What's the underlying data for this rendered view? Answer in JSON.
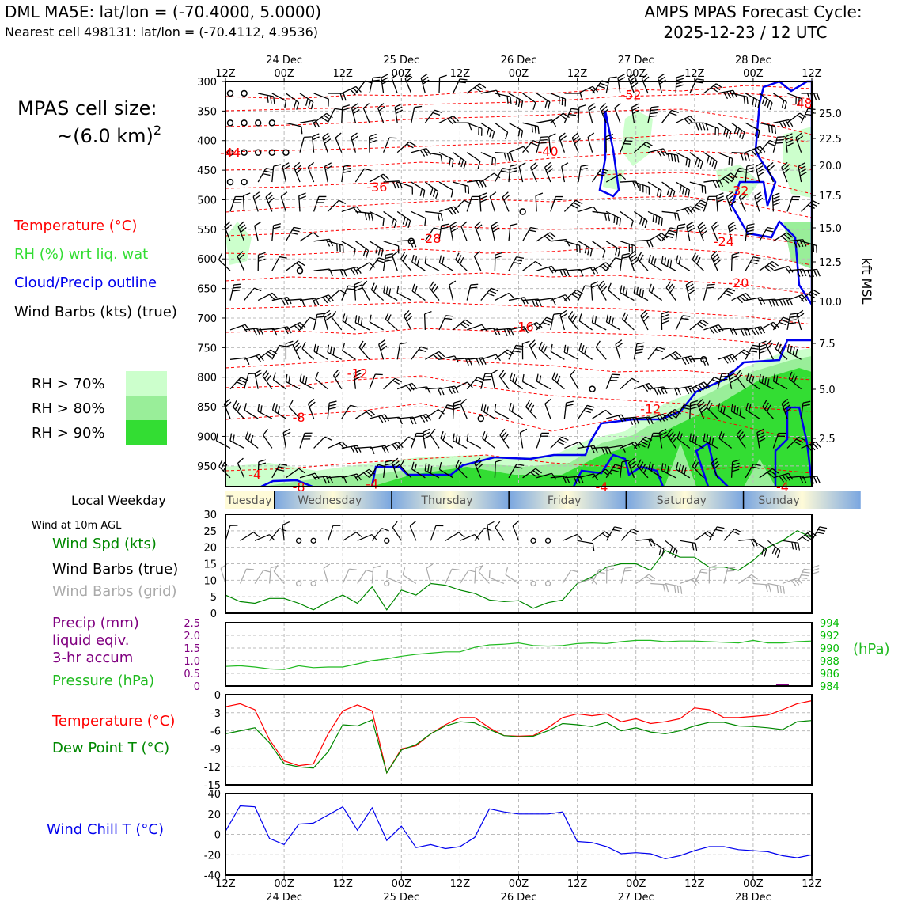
{
  "header": {
    "title_left": "DML MA5E: lat/lon = (-70.4000, 5.0000)",
    "subtitle_left": "Nearest cell 498131: lat/lon = (-70.4112, 4.9536)",
    "title_right_1": "AMPS MPAS Forecast Cycle:",
    "title_right_2": "2025-12-23 / 12 UTC"
  },
  "side": {
    "cell_size_1": "MPAS cell size:",
    "cell_size_2": "~(6.0 km)",
    "cell_size_exp": "2",
    "legend_temp": "Temperature (°C)",
    "legend_rh": "RH (%) wrt liq. wat",
    "legend_cloud": "Cloud/Precip outline",
    "legend_wind": "Wind Barbs (kts) (true)",
    "rh_levels": [
      "RH > 70%",
      "RH > 80%",
      "RH > 90%"
    ],
    "weekday_title": "Local Weekday",
    "wind_title": "Wind at 10m AGL",
    "wind_spd": "Wind Spd (kts)",
    "wind_barbs_true": "Wind Barbs (true)",
    "wind_barbs_grid": "Wind Barbs (grid)",
    "precip_1": "Precip (mm)",
    "precip_2": "liquid eqiv.",
    "precip_3": "3-hr accum",
    "pressure": "Pressure (hPa)",
    "hpa_unit": "(hPa)",
    "temp2": "Temperature (°C)",
    "dew": "Dew Point T (°C)",
    "wchill": "Wind Chill T (°C)",
    "kft_label": "kft MSL"
  },
  "colors": {
    "temp": "#ff0000",
    "rh": "#33dd33",
    "cloud": "#0000ee",
    "wind_grid": "#aaaaaa",
    "precip": "#800080",
    "pressure": "#22bb22",
    "dew": "#008800",
    "rh70": "#ccffcc",
    "rh80": "#99ee99",
    "rh90": "#33dd33"
  },
  "weekdays": [
    "Tuesday",
    "Wednesday",
    "Thursday",
    "Friday",
    "Saturday",
    "Sunday"
  ],
  "chart_data": [
    {
      "type": "line",
      "name": "upper-air cross section",
      "x_ticks": [
        "12Z",
        "00Z",
        "12Z",
        "00Z",
        "12Z",
        "00Z",
        "12Z",
        "00Z",
        "12Z",
        "00Z",
        "12Z"
      ],
      "x_dates": [
        "24 Dec",
        "25 Dec",
        "26 Dec",
        "27 Dec",
        "28 Dec"
      ],
      "y_ticks_left": [
        300,
        350,
        400,
        450,
        500,
        550,
        600,
        650,
        700,
        750,
        800,
        850,
        900,
        950
      ],
      "y_ticks_right": [
        "25.0",
        "22.5",
        "20.0",
        "17.5",
        "15.0",
        "12.5",
        "10.0",
        "7.5",
        "5.0",
        "2.5"
      ],
      "ylabel": "kft MSL",
      "isotherm_labels": [
        {
          "text": "-52",
          "t": 83,
          "p": 322
        },
        {
          "text": "-48",
          "t": 118,
          "p": 337
        },
        {
          "text": "-44",
          "t": 1,
          "p": 420
        },
        {
          "text": "-40",
          "t": 66,
          "p": 418
        },
        {
          "text": "-36",
          "t": 31,
          "p": 478
        },
        {
          "text": "-32",
          "t": 105,
          "p": 484
        },
        {
          "text": "-28",
          "t": 42,
          "p": 565
        },
        {
          "text": "-24",
          "t": 102,
          "p": 570
        },
        {
          "text": "-20",
          "t": 105,
          "p": 640
        },
        {
          "text": "-16",
          "t": 61,
          "p": 714
        },
        {
          "text": "-12",
          "t": 27,
          "p": 793
        },
        {
          "text": "-12",
          "t": 87,
          "p": 853
        },
        {
          "text": "-8",
          "t": 15,
          "p": 867
        },
        {
          "text": "-4",
          "t": 6,
          "p": 964
        },
        {
          "text": "-8",
          "t": 15,
          "p": 985
        },
        {
          "text": "-4",
          "t": 30,
          "p": 980
        },
        {
          "text": "-4",
          "t": 77,
          "p": 985
        },
        {
          "text": "-4",
          "t": 114,
          "p": 985
        }
      ]
    },
    {
      "type": "line",
      "name": "wind speed 10m",
      "ylim": [
        0,
        30
      ],
      "y_ticks": [
        0,
        5,
        10,
        15,
        20,
        25,
        30
      ],
      "t_hours": [
        0,
        3,
        6,
        9,
        12,
        15,
        18,
        21,
        24,
        27,
        30,
        33,
        36,
        39,
        42,
        45,
        48,
        51,
        54,
        57,
        60,
        63,
        66,
        69,
        72,
        75,
        78,
        81,
        84,
        87,
        90,
        93,
        96,
        99,
        102,
        105,
        108,
        111,
        114,
        117,
        120
      ],
      "values": [
        5.5,
        3.5,
        3,
        4.5,
        4.5,
        3,
        1,
        3.5,
        5.5,
        3,
        8,
        1,
        7,
        5.5,
        9,
        8.5,
        7,
        6,
        4,
        3.5,
        3.8,
        1.5,
        3.2,
        4,
        9,
        11,
        14,
        15,
        15,
        13,
        19,
        17,
        17,
        14,
        14,
        13,
        16,
        20,
        22,
        25,
        23
      ]
    },
    {
      "type": "line",
      "name": "precip and pressure",
      "precip_ylim": [
        0,
        2.5
      ],
      "precip_ticks": [
        "0",
        "0.5",
        "1.0",
        "1.5",
        "2.0",
        "2.5"
      ],
      "pressure_ylim": [
        984,
        994
      ],
      "pressure_ticks": [
        "984",
        "986",
        "988",
        "990",
        "992",
        "994"
      ],
      "t_hours": [
        0,
        3,
        6,
        9,
        12,
        15,
        18,
        21,
        24,
        27,
        30,
        33,
        36,
        39,
        42,
        45,
        48,
        51,
        54,
        57,
        60,
        63,
        66,
        69,
        72,
        75,
        78,
        81,
        84,
        87,
        90,
        93,
        96,
        99,
        102,
        105,
        108,
        111,
        114,
        117,
        120
      ],
      "pressure": [
        987.1,
        987.2,
        987.0,
        986.7,
        986.6,
        987.2,
        986.9,
        987.0,
        987.0,
        987.5,
        988.0,
        988.3,
        988.7,
        989.0,
        989.2,
        989.4,
        989.4,
        990.1,
        990.5,
        990.6,
        990.8,
        990.4,
        990.3,
        990.4,
        990.7,
        990.8,
        990.7,
        991.0,
        991.2,
        991.2,
        991.0,
        991.1,
        991.1,
        991.0,
        990.9,
        990.8,
        991.2,
        990.8,
        990.8,
        991.0,
        991.1
      ],
      "precip": [
        0,
        0,
        0,
        0,
        0,
        0,
        0,
        0,
        0,
        0,
        0,
        0,
        0,
        0,
        0,
        0,
        0,
        0,
        0,
        0,
        0,
        0,
        0,
        0,
        0,
        0,
        0,
        0,
        0,
        0,
        0,
        0,
        0,
        0,
        0,
        0,
        0,
        0,
        0.05,
        0,
        0
      ]
    },
    {
      "type": "line",
      "name": "temperature and dew point",
      "ylim": [
        -15,
        0
      ],
      "y_ticks": [
        "0",
        "-3",
        "-6",
        "-9",
        "-12",
        "-15"
      ],
      "t_hours": [
        0,
        3,
        6,
        9,
        12,
        15,
        18,
        21,
        24,
        27,
        30,
        33,
        36,
        39,
        42,
        45,
        48,
        51,
        54,
        57,
        60,
        63,
        66,
        69,
        72,
        75,
        78,
        81,
        84,
        87,
        90,
        93,
        96,
        99,
        102,
        105,
        108,
        111,
        114,
        117,
        120
      ],
      "temperature": [
        -2,
        -1.5,
        -2.5,
        -7.5,
        -11,
        -11.8,
        -11.5,
        -6.5,
        -2.7,
        -1.7,
        -2.7,
        -13,
        -9,
        -8.5,
        -6.5,
        -5,
        -3.8,
        -3.8,
        -5.5,
        -6.8,
        -6.9,
        -6.8,
        -5.5,
        -3.8,
        -3.2,
        -3.5,
        -3.2,
        -4.5,
        -4,
        -4.8,
        -4.5,
        -4,
        -2.2,
        -2.5,
        -3.8,
        -3.8,
        -3.6,
        -3.4,
        -2.5,
        -1.5,
        -1
      ],
      "dew_point": [
        -6.5,
        -6,
        -5.5,
        -8,
        -11.5,
        -12,
        -12.2,
        -9.5,
        -5,
        -5.2,
        -4.2,
        -13,
        -9.2,
        -8.3,
        -6.5,
        -5.2,
        -4.5,
        -4.7,
        -5.8,
        -6.8,
        -7,
        -6.9,
        -6,
        -4.8,
        -5,
        -5.3,
        -4.6,
        -6,
        -5.5,
        -6.2,
        -6.5,
        -6,
        -5.2,
        -4.6,
        -4.6,
        -5.2,
        -5.3,
        -5.5,
        -5.8,
        -4.5,
        -4.3
      ]
    },
    {
      "type": "line",
      "name": "wind chill",
      "ylim": [
        -40,
        40
      ],
      "y_ticks": [
        "40",
        "20",
        "0",
        "-20",
        "-40"
      ],
      "t_hours": [
        0,
        3,
        6,
        9,
        12,
        15,
        18,
        21,
        24,
        27,
        30,
        33,
        36,
        39,
        42,
        45,
        48,
        51,
        54,
        57,
        60,
        63,
        66,
        69,
        72,
        75,
        78,
        81,
        84,
        87,
        90,
        93,
        96,
        99,
        102,
        105,
        108,
        111,
        114,
        117,
        120
      ],
      "values": [
        3,
        28,
        27,
        -4,
        -10,
        10,
        11,
        19,
        27,
        4,
        26,
        -6,
        8,
        -13,
        -10,
        -14,
        -12,
        -3,
        25,
        22,
        20,
        20,
        20,
        22,
        -7,
        -8,
        -12,
        -19,
        -18,
        -19,
        -24,
        -21,
        -16,
        -12,
        -12,
        -15,
        -16,
        -17,
        -21,
        -23,
        -20
      ]
    }
  ]
}
